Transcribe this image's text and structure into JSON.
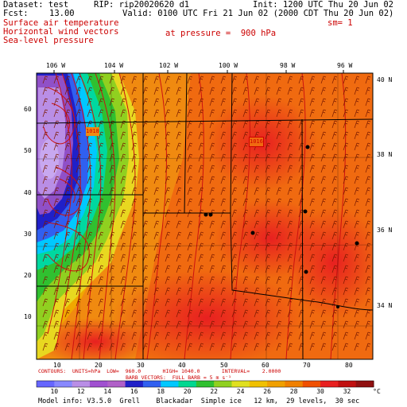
{
  "header": {
    "dataset": "Dataset: test",
    "rip": "RIP: rip20020620 d1",
    "init": "Init: 1200 UTC Thu 20 Jun 02",
    "fcst": "Fcst:",
    "fcst_value": "13.00",
    "valid": "Valid: 0100 UTC Fri 21 Jun 02 (2000 CDT Thu 20 Jun 02)"
  },
  "fields": {
    "line1": "Surface air temperature",
    "line2": "Horizontal wind vectors",
    "line3": "Sea-level pressure",
    "pressure": "at pressure =  900 hPa",
    "sm": "sm= 1"
  },
  "map": {
    "top_lon_labels": [
      "106 W",
      "104 W",
      "102 W",
      "100 W",
      "98 W",
      "96 W"
    ],
    "right_lat_labels": [
      "40 N",
      "38 N",
      "36 N",
      "34 N"
    ],
    "left_grid_labels": [
      "60",
      "50",
      "40",
      "30",
      "20",
      "10"
    ],
    "bottom_grid_labels": [
      "10",
      "20",
      "30",
      "40",
      "50",
      "60",
      "70",
      "80"
    ],
    "contour_label_1": "1018",
    "contour_label_2": "1016"
  },
  "contour_info": {
    "line1": "CONTOURS:  UNITS=hPa  LOW=  960.0       HIGH= 1040.0       INTERVAL=    2.0000",
    "line2": "BARB VECTORS:  FULL BARB = 5 m s⁻¹"
  },
  "colorbar": {
    "labels": [
      "10",
      "12",
      "14",
      "16",
      "18",
      "20",
      "22",
      "24",
      "26",
      "28",
      "30",
      "32",
      "°C"
    ],
    "colors": [
      "#6666ff",
      "#8888ff",
      "#b98ee6",
      "#a050d0",
      "#b060c8",
      "#2020c8",
      "#3060f0",
      "#00c8ff",
      "#00d890",
      "#30c030",
      "#90d020",
      "#e0e020",
      "#f0c000",
      "#f0a000",
      "#f08000",
      "#f05000",
      "#e82020",
      "#c01010",
      "#901010"
    ]
  },
  "footer": {
    "text": "Model info: V3.5.0  Grell    Blackadar  Simple ice   12 km,  29 levels,  30 sec"
  }
}
